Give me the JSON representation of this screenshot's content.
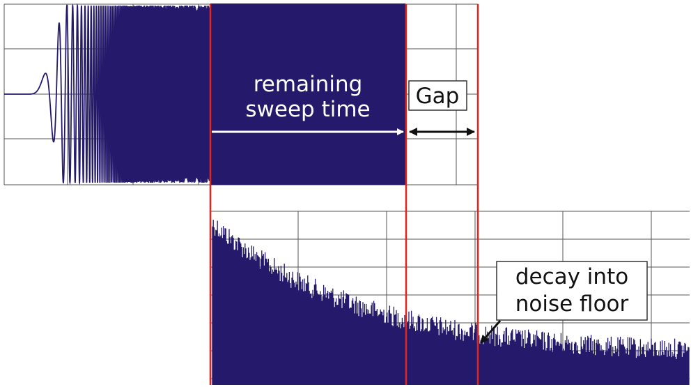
{
  "labels": {
    "remaining_line1": "remaining",
    "remaining_line2": "sweep time",
    "gap": "Gap",
    "decay_line1": "decay into",
    "decay_line2": "noise floor"
  },
  "colors": {
    "signal": "#24196b",
    "marker": "#e0261c",
    "grid": "#555555",
    "label_fill": "#ffffff",
    "label_text_dark": "#111111",
    "label_text_light": "#ffffff",
    "arrow_dark": "#111111",
    "arrow_light": "#ffffff"
  }
}
